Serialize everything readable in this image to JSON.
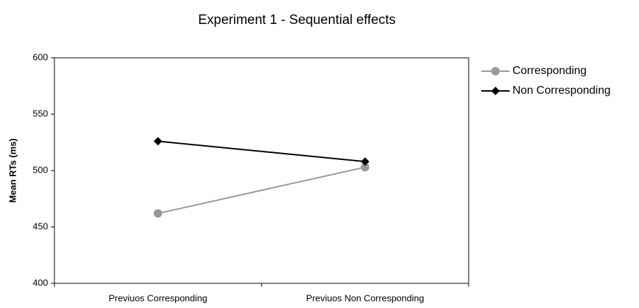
{
  "chart_data": {
    "type": "line",
    "title": "Experiment 1 - Sequential effects",
    "y_label": "Mean RTs (ms)",
    "categories": [
      "Previuos Corresponding",
      "Previuos Non Corresponding"
    ],
    "series": [
      {
        "name": "Corresponding",
        "color": "#999999",
        "marker": "circle",
        "values": [
          462,
          503
        ]
      },
      {
        "name": "Non Corresponding",
        "color": "#000000",
        "marker": "diamond",
        "values": [
          526,
          508
        ]
      }
    ],
    "ylim": [
      400,
      600
    ],
    "yticks": [
      400,
      450,
      500,
      550,
      600
    ],
    "grid": false,
    "legend": "right"
  }
}
